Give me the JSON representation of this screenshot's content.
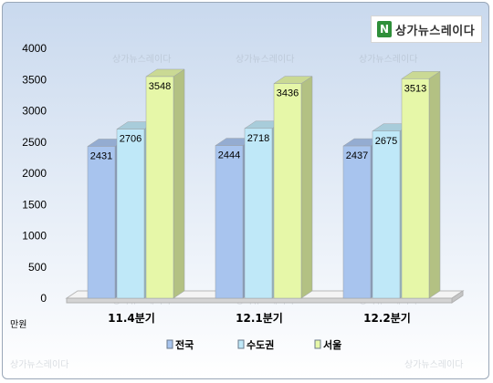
{
  "logo": {
    "text": "상가뉴스레이다",
    "icon": "logo-mark"
  },
  "watermark_text": "상가뉴스레이다",
  "chart_data": {
    "type": "bar",
    "unit_label": "만원",
    "categories": [
      "11.4분기",
      "12.1분기",
      "12.2분기"
    ],
    "series": [
      {
        "name": "전국",
        "values": [
          2431,
          2444,
          2437
        ],
        "color": "#a8c4ee"
      },
      {
        "name": "수도권",
        "values": [
          2706,
          2718,
          2675
        ],
        "color": "#bfe8f8"
      },
      {
        "name": "서울",
        "values": [
          3548,
          3436,
          3513
        ],
        "color": "#e6f7a8"
      }
    ],
    "ylim": [
      0,
      4000
    ],
    "yticks": [
      0,
      500,
      1000,
      1500,
      2000,
      2500,
      3000,
      3500,
      4000
    ],
    "legend_position": "bottom",
    "grid": false
  }
}
